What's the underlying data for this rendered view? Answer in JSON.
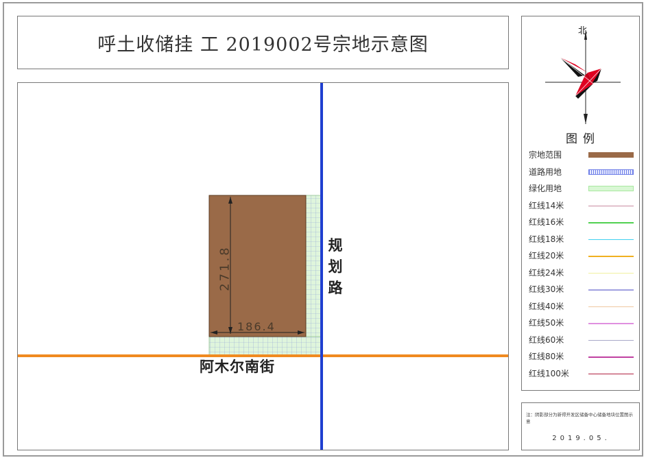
{
  "title": "呼土收储挂 工 2019002号宗地示意图",
  "map": {
    "road_vertical_label": "规\n划\n路",
    "road_horizontal_label": "阿木尔南街",
    "dimension_vertical": "271.8",
    "dimension_horizontal": "186.4",
    "colors": {
      "parcel": "#9a6a48",
      "road_vertical": "#1f3fd0",
      "road_horizontal": "#f08a20",
      "green": "#c8f0c0"
    }
  },
  "north_label": "北",
  "legend": {
    "title": "图例",
    "items": [
      {
        "label": "宗地范围",
        "kind": "fill",
        "color": "#9a6a48"
      },
      {
        "label": "道路用地",
        "kind": "pattern",
        "color": "#6f7fe8"
      },
      {
        "label": "绿化用地",
        "kind": "green",
        "color": "#a8e8a0"
      },
      {
        "label": "红线14米",
        "kind": "line",
        "color": "#c98aa0"
      },
      {
        "label": "红线16米",
        "kind": "line",
        "color": "#50d050"
      },
      {
        "label": "红线18米",
        "kind": "line",
        "color": "#40d0f0"
      },
      {
        "label": "红线20米",
        "kind": "line",
        "color": "#f0b020"
      },
      {
        "label": "红线24米",
        "kind": "line",
        "color": "#f0f0a0"
      },
      {
        "label": "红线30米",
        "kind": "line",
        "color": "#a0a0e0"
      },
      {
        "label": "红线40米",
        "kind": "line",
        "color": "#f0c8a0"
      },
      {
        "label": "红线50米",
        "kind": "line",
        "color": "#e090e0"
      },
      {
        "label": "红线60米",
        "kind": "line",
        "color": "#a8a8c8"
      },
      {
        "label": "红线80米",
        "kind": "line",
        "color": "#c040a0"
      },
      {
        "label": "红线100米",
        "kind": "line",
        "color": "#b02040"
      }
    ]
  },
  "note": {
    "text": "注：阴影部分为新得开发区储备中心储备地块位置图示意",
    "date": "2019.05."
  }
}
